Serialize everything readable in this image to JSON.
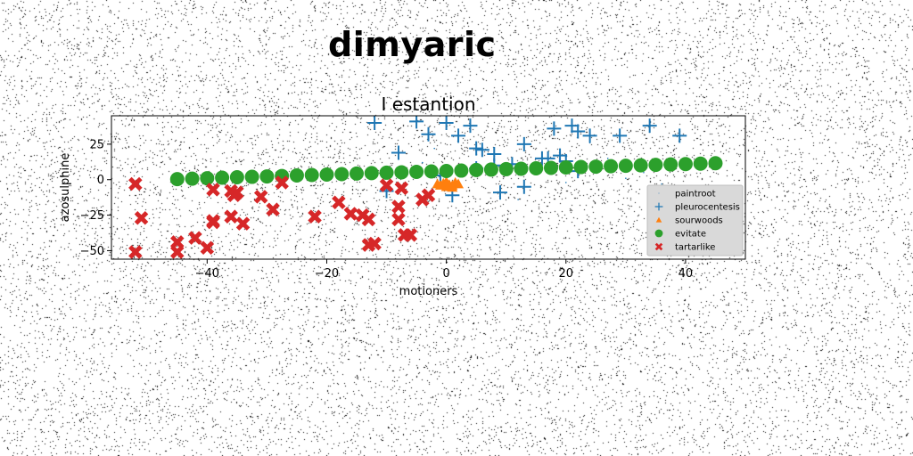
{
  "figure": {
    "suptitle": "dimyaric"
  },
  "chart_data": {
    "type": "scatter",
    "title": "I estantion",
    "xlabel": "motioners",
    "ylabel": "azosulphine",
    "xlim": [
      -56,
      50
    ],
    "ylim": [
      -56,
      45
    ],
    "xticks": [
      -40,
      -20,
      0,
      20,
      40
    ],
    "yticks": [
      -50,
      -25,
      0,
      25
    ],
    "grid": false,
    "legend_position": "lower-right",
    "series": [
      {
        "name": "paintroot",
        "marker": "point",
        "color": "#1f77b4",
        "x": [
          -8,
          -4,
          3,
          9,
          14,
          20,
          27,
          33,
          40,
          -2,
          6,
          12,
          18,
          24,
          30,
          36,
          44
        ],
        "y": [
          -4,
          12,
          3,
          -10,
          8,
          -2,
          15,
          5,
          -6,
          22,
          18,
          -14,
          9,
          26,
          1,
          -3,
          11
        ]
      },
      {
        "name": "pleurocentesis",
        "marker": "plus",
        "color": "#1f77b4",
        "x": [
          -12,
          -5,
          0,
          2,
          4,
          5,
          6,
          8,
          -3,
          13,
          18,
          21,
          22,
          24,
          29,
          34,
          39,
          19,
          16,
          11,
          8,
          5,
          -1,
          -10,
          -8,
          1,
          13,
          22,
          17,
          20,
          9
        ],
        "y": [
          40,
          41,
          40,
          31,
          38,
          22,
          21,
          18,
          32,
          25,
          36,
          38,
          34,
          31,
          31,
          38,
          31,
          17,
          15,
          11,
          10,
          8,
          3,
          -8,
          19,
          -11,
          -5,
          6,
          15,
          13,
          -9
        ]
      },
      {
        "name": "sourwoods",
        "marker": "triangle",
        "color": "#ff7f0e",
        "x": [
          -1.5,
          -1,
          -0.5,
          0,
          0.5,
          1,
          1.5,
          2,
          0,
          1
        ],
        "y": [
          -3,
          -4,
          -2.5,
          -5,
          -3.5,
          -4,
          -2,
          -3,
          -1.5,
          -5.5
        ]
      },
      {
        "name": "evitate",
        "marker": "circle",
        "color": "#2ca02c",
        "x": [
          -45,
          -42.5,
          -40,
          -37.5,
          -35,
          -32.5,
          -30,
          -27.5,
          -25,
          -22.5,
          -20,
          -17.5,
          -15,
          -12.5,
          -10,
          -7.5,
          -5,
          -2.5,
          0,
          2.5,
          5,
          7.5,
          10,
          12.5,
          15,
          17.5,
          20,
          22.5,
          25,
          27.5,
          30,
          32.5,
          35,
          37.5,
          40,
          42.5,
          45
        ],
        "y": [
          0.4,
          0.7,
          1.0,
          1.4,
          1.7,
          2.0,
          2.3,
          2.6,
          3.0,
          3.3,
          3.6,
          3.9,
          4.3,
          4.6,
          4.9,
          5.2,
          5.5,
          5.8,
          6.1,
          6.4,
          6.8,
          7.1,
          7.4,
          7.7,
          8.0,
          8.3,
          8.6,
          8.9,
          9.2,
          9.5,
          9.8,
          10.1,
          10.4,
          10.7,
          11.0,
          11.3,
          11.6
        ]
      },
      {
        "name": "tartarlike",
        "marker": "x",
        "color": "#d62728",
        "x": [
          -52,
          -51,
          -52,
          -45,
          -45,
          -42,
          -40,
          -39,
          -39,
          -39,
          -36,
          -36,
          -35.5,
          -35,
          -34,
          -31,
          -29,
          -27.5,
          -22,
          -18,
          -16,
          -14,
          -13,
          -13,
          -12,
          -10,
          -8,
          -8,
          -7.5,
          -7,
          -6,
          -4,
          -3
        ],
        "y": [
          -3,
          -27,
          -51,
          -44,
          -51,
          -41,
          -48,
          -29,
          -30,
          -7,
          -8,
          -26,
          -11,
          -9,
          -31,
          -12,
          -21,
          -2,
          -26,
          -16,
          -24,
          -25,
          -28,
          -46,
          -45,
          -4,
          -28,
          -19,
          -6,
          -39,
          -39,
          -14,
          -11
        ]
      }
    ]
  }
}
